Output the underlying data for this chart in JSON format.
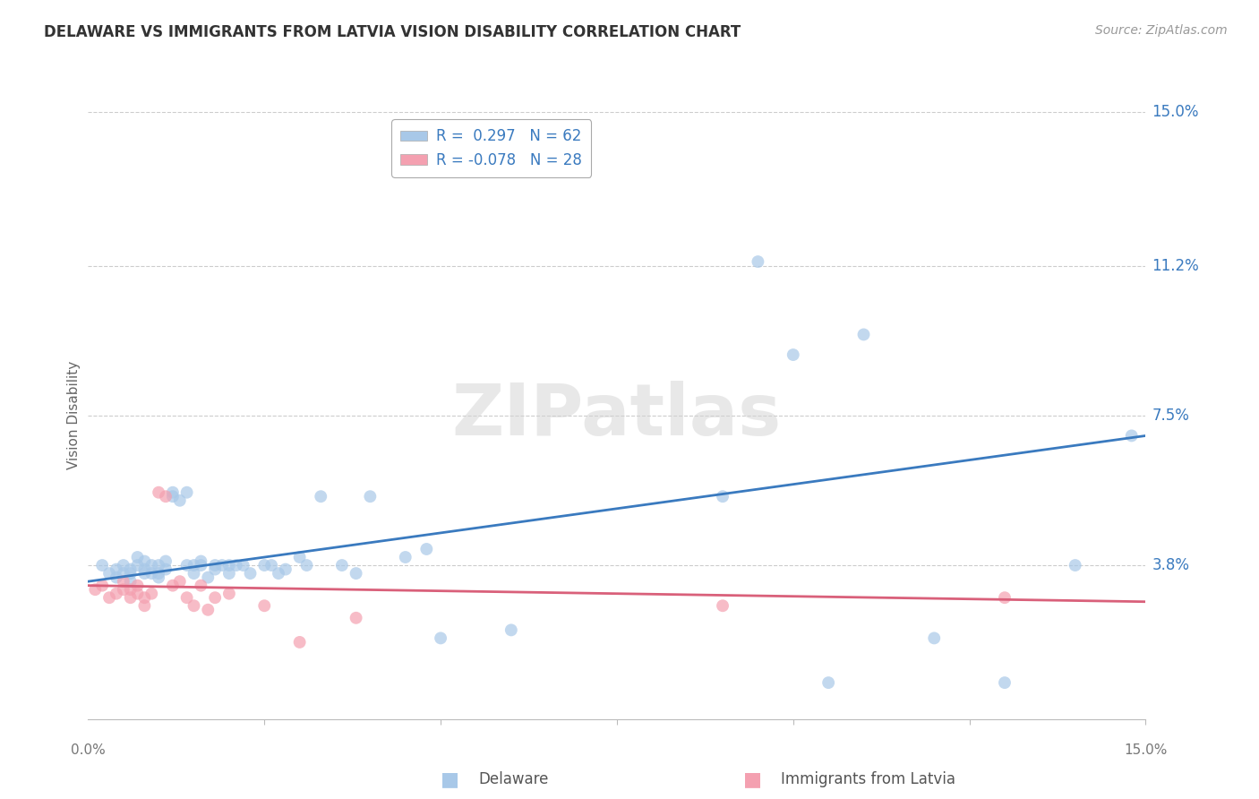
{
  "title": "DELAWARE VS IMMIGRANTS FROM LATVIA VISION DISABILITY CORRELATION CHART",
  "source": "Source: ZipAtlas.com",
  "ylabel": "Vision Disability",
  "x_min": 0.0,
  "x_max": 0.15,
  "y_min": 0.0,
  "y_max": 0.15,
  "y_tick_vals": [
    0.038,
    0.075,
    0.112,
    0.15
  ],
  "y_tick_labels": [
    "3.8%",
    "7.5%",
    "11.2%",
    "15.0%"
  ],
  "watermark_text": "ZIPatlas",
  "legend_label1": "R =  0.297   N = 62",
  "legend_label2": "R = -0.078   N = 28",
  "blue_color": "#a8c8e8",
  "pink_color": "#f4a0b0",
  "line_blue_color": "#3a7abf",
  "line_pink_color": "#d9607a",
  "blue_scatter": [
    [
      0.002,
      0.038
    ],
    [
      0.003,
      0.036
    ],
    [
      0.004,
      0.035
    ],
    [
      0.004,
      0.037
    ],
    [
      0.005,
      0.038
    ],
    [
      0.005,
      0.036
    ],
    [
      0.006,
      0.034
    ],
    [
      0.006,
      0.036
    ],
    [
      0.006,
      0.037
    ],
    [
      0.007,
      0.038
    ],
    [
      0.007,
      0.04
    ],
    [
      0.008,
      0.036
    ],
    [
      0.008,
      0.037
    ],
    [
      0.008,
      0.039
    ],
    [
      0.009,
      0.036
    ],
    [
      0.009,
      0.038
    ],
    [
      0.01,
      0.038
    ],
    [
      0.01,
      0.036
    ],
    [
      0.01,
      0.035
    ],
    [
      0.011,
      0.037
    ],
    [
      0.011,
      0.039
    ],
    [
      0.012,
      0.055
    ],
    [
      0.012,
      0.056
    ],
    [
      0.013,
      0.054
    ],
    [
      0.014,
      0.056
    ],
    [
      0.014,
      0.038
    ],
    [
      0.015,
      0.036
    ],
    [
      0.015,
      0.038
    ],
    [
      0.016,
      0.039
    ],
    [
      0.016,
      0.038
    ],
    [
      0.017,
      0.035
    ],
    [
      0.018,
      0.038
    ],
    [
      0.018,
      0.037
    ],
    [
      0.019,
      0.038
    ],
    [
      0.02,
      0.036
    ],
    [
      0.02,
      0.038
    ],
    [
      0.021,
      0.038
    ],
    [
      0.022,
      0.038
    ],
    [
      0.023,
      0.036
    ],
    [
      0.025,
      0.038
    ],
    [
      0.026,
      0.038
    ],
    [
      0.027,
      0.036
    ],
    [
      0.028,
      0.037
    ],
    [
      0.03,
      0.04
    ],
    [
      0.031,
      0.038
    ],
    [
      0.033,
      0.055
    ],
    [
      0.036,
      0.038
    ],
    [
      0.038,
      0.036
    ],
    [
      0.04,
      0.055
    ],
    [
      0.045,
      0.04
    ],
    [
      0.048,
      0.042
    ],
    [
      0.05,
      0.02
    ],
    [
      0.06,
      0.022
    ],
    [
      0.09,
      0.055
    ],
    [
      0.095,
      0.113
    ],
    [
      0.1,
      0.09
    ],
    [
      0.105,
      0.009
    ],
    [
      0.11,
      0.095
    ],
    [
      0.12,
      0.02
    ],
    [
      0.13,
      0.009
    ],
    [
      0.14,
      0.038
    ],
    [
      0.148,
      0.07
    ]
  ],
  "pink_scatter": [
    [
      0.001,
      0.032
    ],
    [
      0.002,
      0.033
    ],
    [
      0.003,
      0.03
    ],
    [
      0.004,
      0.031
    ],
    [
      0.005,
      0.032
    ],
    [
      0.005,
      0.034
    ],
    [
      0.006,
      0.03
    ],
    [
      0.006,
      0.032
    ],
    [
      0.007,
      0.031
    ],
    [
      0.007,
      0.033
    ],
    [
      0.008,
      0.028
    ],
    [
      0.008,
      0.03
    ],
    [
      0.009,
      0.031
    ],
    [
      0.01,
      0.056
    ],
    [
      0.011,
      0.055
    ],
    [
      0.012,
      0.033
    ],
    [
      0.013,
      0.034
    ],
    [
      0.014,
      0.03
    ],
    [
      0.015,
      0.028
    ],
    [
      0.016,
      0.033
    ],
    [
      0.017,
      0.027
    ],
    [
      0.018,
      0.03
    ],
    [
      0.02,
      0.031
    ],
    [
      0.025,
      0.028
    ],
    [
      0.03,
      0.019
    ],
    [
      0.038,
      0.025
    ],
    [
      0.09,
      0.028
    ],
    [
      0.13,
      0.03
    ]
  ],
  "blue_line": [
    [
      0.0,
      0.034
    ],
    [
      0.15,
      0.07
    ]
  ],
  "pink_line": [
    [
      0.0,
      0.033
    ],
    [
      0.15,
      0.029
    ]
  ],
  "background_color": "#ffffff",
  "grid_color": "#cccccc"
}
